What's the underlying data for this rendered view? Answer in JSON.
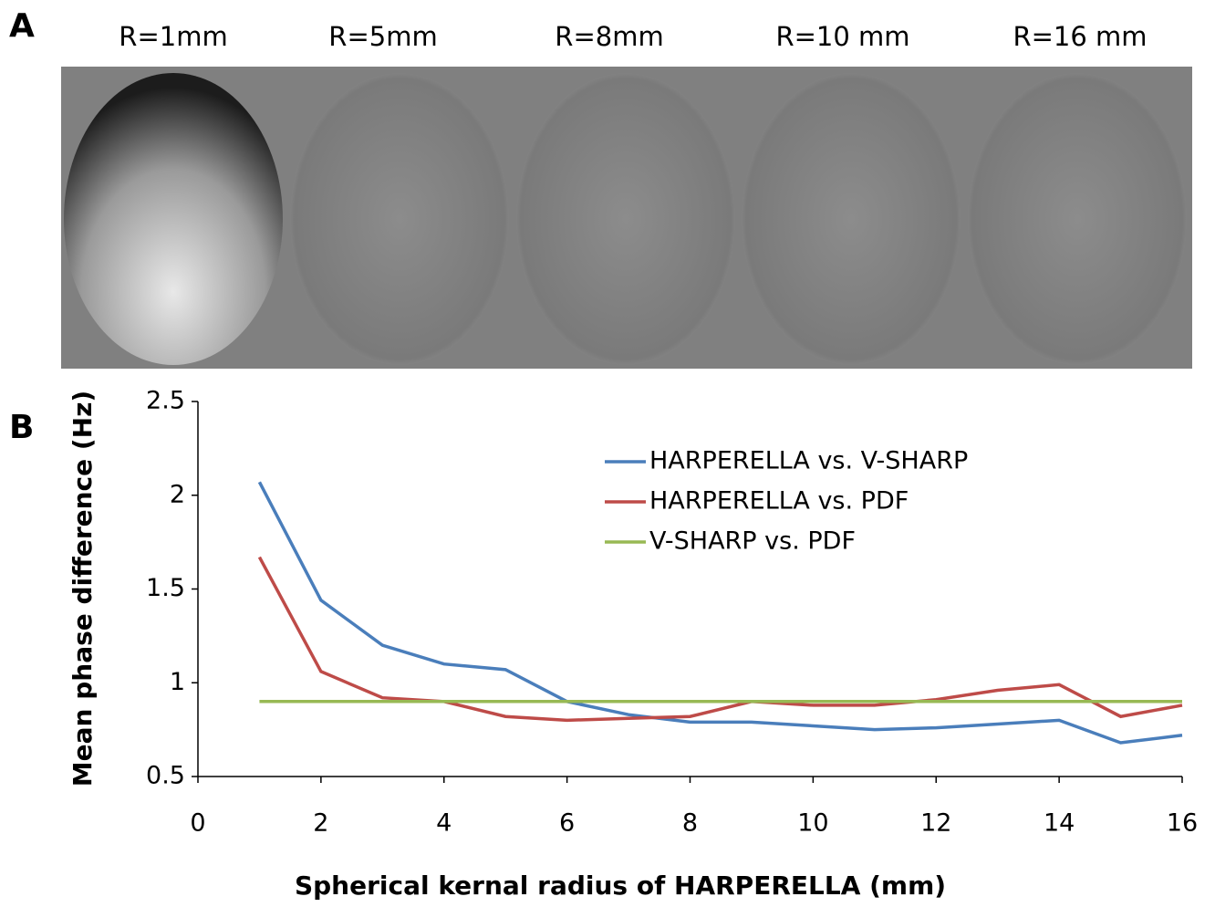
{
  "panel_a": {
    "label": "A",
    "captions": [
      "R=1mm",
      "R=5mm",
      "R=8mm",
      "R=10 mm",
      "R=16 mm"
    ]
  },
  "panel_b_label": "B",
  "chart_data": {
    "type": "line",
    "x_label": "Spherical kernal radius of HARPERELLA (mm)",
    "y_label": "Mean phase difference (Hz)",
    "x": [
      1,
      2,
      3,
      4,
      5,
      6,
      7,
      8,
      9,
      10,
      11,
      12,
      13,
      14,
      15,
      16
    ],
    "series": [
      {
        "name": "HARPERELLA vs. V-SHARP",
        "color": "#4a7ebb",
        "values": [
          2.07,
          1.44,
          1.2,
          1.1,
          1.07,
          0.9,
          0.83,
          0.79,
          0.79,
          0.77,
          0.75,
          0.76,
          0.78,
          0.8,
          0.68,
          0.72
        ]
      },
      {
        "name": "HARPERELLA vs. PDF",
        "color": "#be4b48",
        "values": [
          1.67,
          1.06,
          0.92,
          0.9,
          0.82,
          0.8,
          0.81,
          0.82,
          0.9,
          0.88,
          0.88,
          0.91,
          0.96,
          0.99,
          0.82,
          0.88
        ]
      },
      {
        "name": "V-SHARP vs. PDF",
        "color": "#98b954",
        "values": [
          0.9,
          0.9,
          0.9,
          0.9,
          0.9,
          0.9,
          0.9,
          0.9,
          0.9,
          0.9,
          0.9,
          0.9,
          0.9,
          0.9,
          0.9,
          0.9
        ]
      }
    ],
    "xlim": [
      0,
      16
    ],
    "xticks": [
      0,
      2,
      4,
      6,
      8,
      10,
      12,
      14,
      16
    ],
    "ylim": [
      0.5,
      2.5
    ],
    "yticks": [
      0.5,
      1,
      1.5,
      2,
      2.5
    ],
    "grid": false,
    "legend": "upper-right"
  }
}
